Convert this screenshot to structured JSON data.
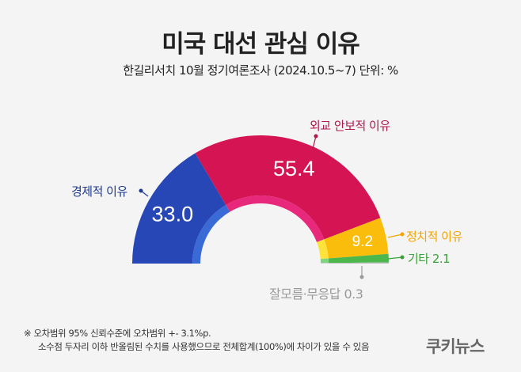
{
  "title": "미국 대선 관심 이유",
  "subtitle": "한길리서치 10월 정기여론조사 (2024.10.5~7) 단위: %",
  "chart_data": {
    "type": "pie",
    "variant": "half-donut",
    "title": "미국 대선 관심 이유",
    "unit": "%",
    "categories": [
      "경제적 이유",
      "외교 안보적 이유",
      "정치적 이유",
      "기타",
      "잘모름·무응답"
    ],
    "values": [
      33.0,
      55.4,
      9.2,
      2.1,
      0.3
    ],
    "value_labels": [
      "33.0",
      "55.4",
      "9.2",
      "2.1",
      "0.3"
    ],
    "colors": [
      "#2647b5",
      "#d41453",
      "#fbbd0c",
      "#4cb84c",
      "#bdbdbd"
    ],
    "inner_colors": [
      "#3a6ad6",
      "#e8287a",
      "#ffe23a",
      "#7fd47f",
      "#d0d0d0"
    ],
    "label_colors": [
      "#1f3a8f",
      "#b0174f",
      "#f2a500",
      "#3aa13a",
      "#9a9a9a"
    ],
    "callouts": [
      "경제적 이유",
      "외교 안보적 이유",
      "정치적 이유",
      "기타 2.1",
      "잘모름·무응답 0.3"
    ],
    "legend": "none"
  },
  "footnotes": [
    "※ 오차범위 95% 신뢰수준에 오차범위 +- 3.1%p.",
    "소수점 두자리 이하 반올림된 수치를 사용했으므로 전체합계(100%)에 차이가 있을 수 있음"
  ],
  "logo_text": "쿠키뉴스"
}
